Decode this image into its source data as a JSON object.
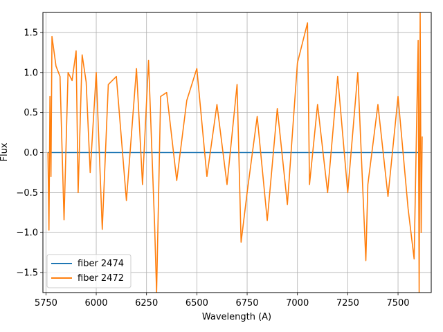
{
  "chart_data": {
    "type": "line",
    "title": "",
    "xlabel": "Wavelength (A)",
    "ylabel": "Flux",
    "xlim": [
      5735,
      7665
    ],
    "ylim": [
      -1.75,
      1.75
    ],
    "xticks": [
      5750,
      6000,
      6250,
      6500,
      6750,
      7000,
      7250,
      7500
    ],
    "yticks": [
      -1.5,
      -1.0,
      -0.5,
      0.0,
      0.5,
      1.0,
      1.5
    ],
    "xtick_labels": [
      "5750",
      "6000",
      "6250",
      "6500",
      "6750",
      "7000",
      "7250",
      "7500"
    ],
    "ytick_labels": [
      "−1.5",
      "−1.0",
      "−0.5",
      "0.0",
      "0.5",
      "1.0",
      "1.5"
    ],
    "grid": true,
    "legend": {
      "position": "lower-left"
    },
    "series": [
      {
        "name": "fiber 2474",
        "color": "#1f77b4",
        "x": [
          5760,
          7620
        ],
        "y": [
          0.0,
          0.0
        ]
      },
      {
        "name": "fiber 2472",
        "color": "#ff7f0e",
        "x": [
          5760,
          5765,
          5770,
          5775,
          5780,
          5800,
          5820,
          5840,
          5860,
          5880,
          5900,
          5910,
          5930,
          5950,
          5970,
          6000,
          6030,
          6060,
          6100,
          6150,
          6200,
          6230,
          6260,
          6290,
          6300,
          6320,
          6350,
          6400,
          6450,
          6500,
          6550,
          6600,
          6650,
          6700,
          6720,
          6750,
          6800,
          6850,
          6900,
          6950,
          7000,
          7050,
          7060,
          7100,
          7150,
          7200,
          7250,
          7300,
          7340,
          7350,
          7400,
          7450,
          7500,
          7550,
          7580,
          7600,
          7605,
          7610,
          7615,
          7620
        ],
        "y": [
          0.0,
          -0.97,
          0.7,
          -0.3,
          1.45,
          1.08,
          0.95,
          -0.84,
          1.0,
          0.9,
          1.27,
          -0.5,
          1.22,
          0.88,
          -0.25,
          1.0,
          -0.96,
          0.85,
          0.95,
          -0.6,
          1.05,
          -0.4,
          1.15,
          -0.9,
          -1.75,
          0.7,
          0.75,
          -0.35,
          0.65,
          1.05,
          -0.3,
          0.6,
          -0.4,
          0.85,
          -1.12,
          -0.5,
          0.45,
          -0.85,
          0.55,
          -0.65,
          1.12,
          1.62,
          -0.4,
          0.6,
          -0.5,
          0.95,
          -0.5,
          1.0,
          -1.35,
          -0.4,
          0.6,
          -0.55,
          0.7,
          -0.7,
          -1.33,
          1.4,
          -1.75,
          1.75,
          -1.0,
          0.2
        ]
      }
    ]
  }
}
